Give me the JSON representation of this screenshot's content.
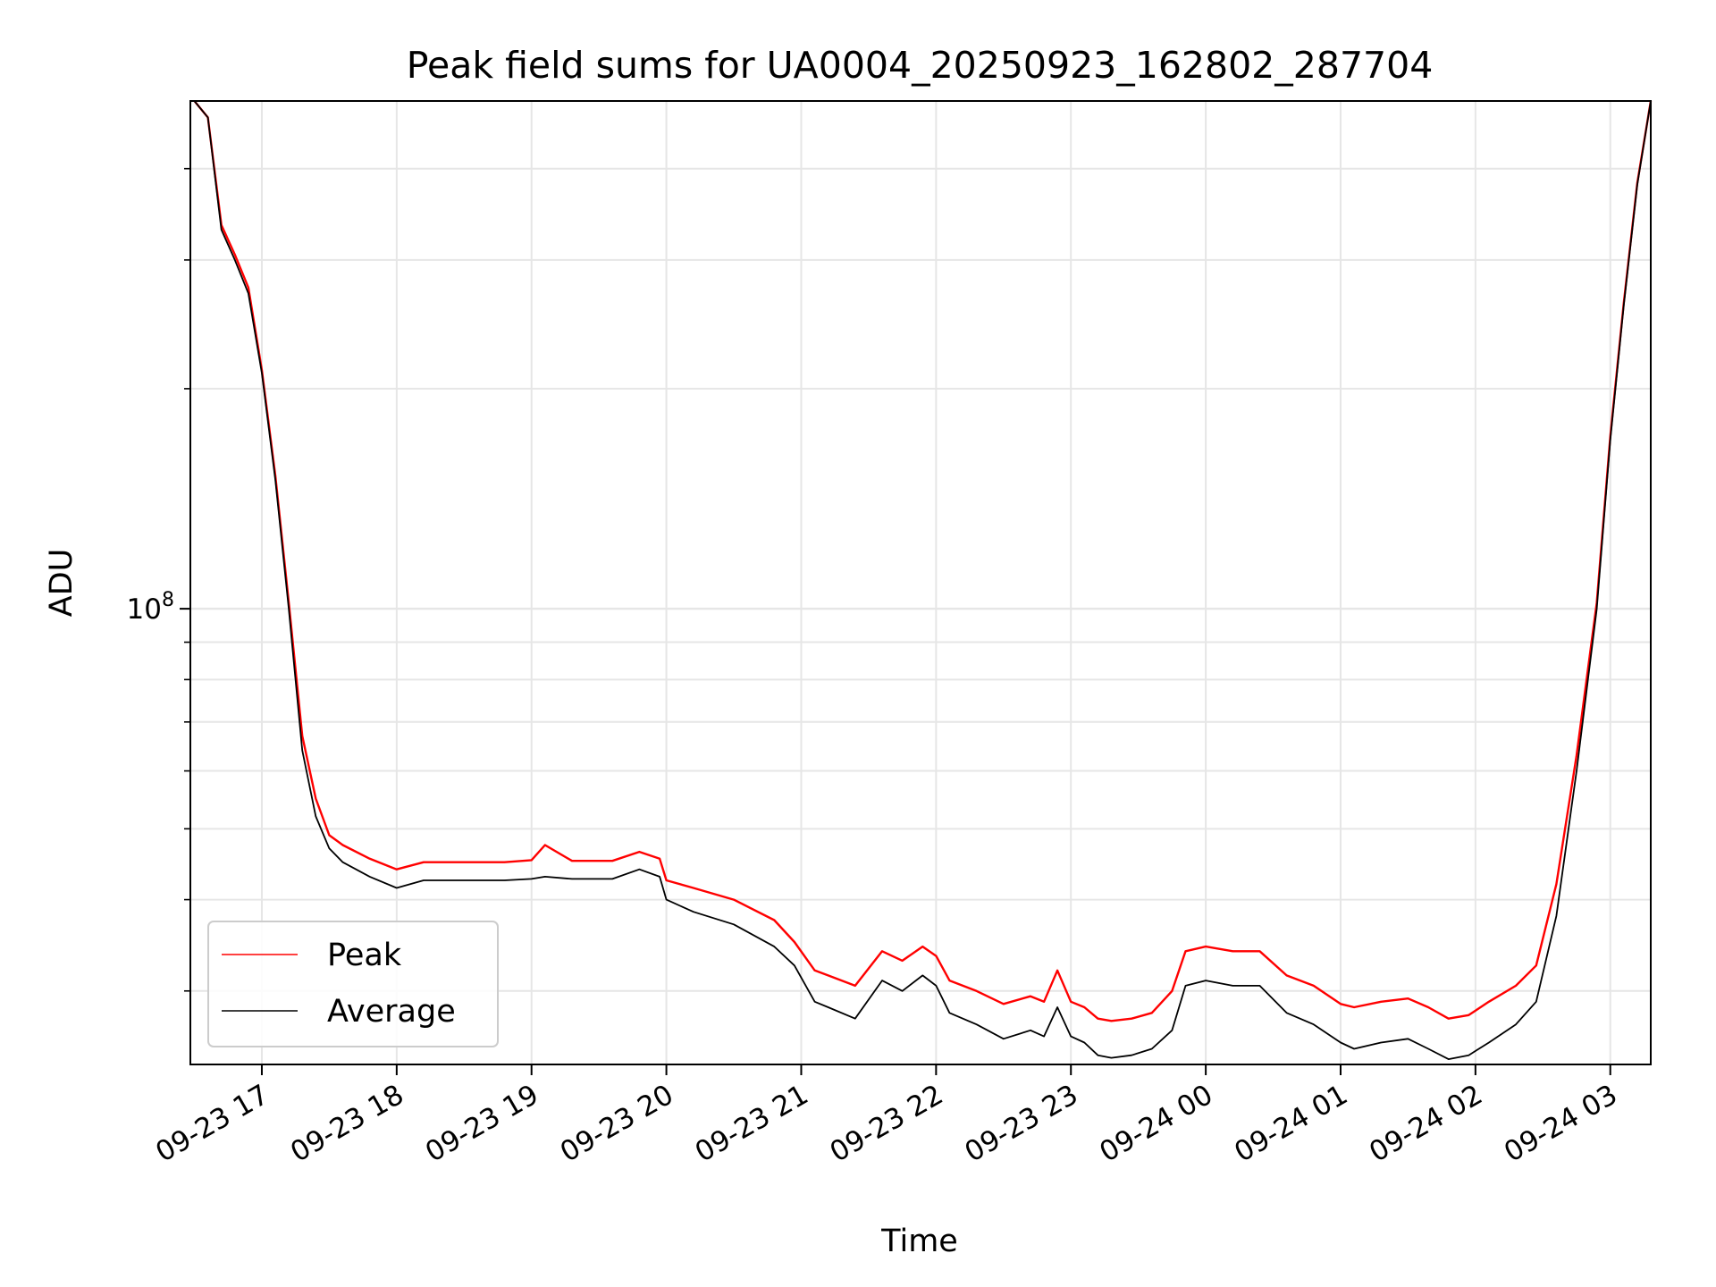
{
  "chart_data": {
    "type": "line",
    "title": "Peak field sums for UA0004_20250923_162802_287704",
    "xlabel": "Time",
    "ylabel": "ADU",
    "yscale": "log",
    "ylim": [
      23800000,
      495000000
    ],
    "xlim_hours": [
      16.47,
      27.3
    ],
    "grid": true,
    "legend_position": "lower-left",
    "x_tick_labels": [
      "09-23 17",
      "09-23 18",
      "09-23 19",
      "09-23 20",
      "09-23 21",
      "09-23 22",
      "09-23 23",
      "09-24 00",
      "09-24 01",
      "09-24 02",
      "09-24 03"
    ],
    "x_tick_hours": [
      17,
      18,
      19,
      20,
      21,
      22,
      23,
      24,
      25,
      26,
      27
    ],
    "y_tick_major": {
      "base": "10",
      "exp": "8",
      "value": 100000000
    },
    "y_tick_minor_values": [
      30000000,
      40000000,
      50000000,
      60000000,
      70000000,
      80000000,
      90000000,
      200000000,
      300000000,
      400000000
    ],
    "series": [
      {
        "name": "Peak",
        "color": "#ff0000"
      },
      {
        "name": "Average",
        "color": "#000000"
      }
    ],
    "x_hours": [
      16.5,
      16.6,
      16.7,
      16.8,
      16.9,
      17.0,
      17.1,
      17.2,
      17.3,
      17.4,
      17.5,
      17.6,
      17.8,
      18.0,
      18.2,
      18.5,
      18.8,
      19.0,
      19.1,
      19.3,
      19.6,
      19.8,
      19.95,
      20.0,
      20.2,
      20.5,
      20.8,
      20.95,
      21.1,
      21.2,
      21.4,
      21.6,
      21.75,
      21.9,
      22.0,
      22.1,
      22.3,
      22.5,
      22.7,
      22.8,
      22.9,
      23.0,
      23.1,
      23.2,
      23.3,
      23.45,
      23.6,
      23.75,
      23.85,
      24.0,
      24.2,
      24.4,
      24.6,
      24.8,
      25.0,
      25.1,
      25.3,
      25.5,
      25.65,
      25.8,
      25.95,
      26.1,
      26.3,
      26.45,
      26.6,
      26.75,
      26.9,
      27.0,
      27.1,
      27.2,
      27.3
    ],
    "average_values": [
      495000000,
      470000000,
      330000000,
      300000000,
      270000000,
      210000000,
      150000000,
      100000000,
      64000000,
      52000000,
      47000000,
      45000000,
      43000000,
      41500000,
      42500000,
      42500000,
      42500000,
      42700000,
      43000000,
      42700000,
      42700000,
      44000000,
      43000000,
      40000000,
      38500000,
      37000000,
      34500000,
      32500000,
      29000000,
      28500000,
      27500000,
      31000000,
      30000000,
      31500000,
      30500000,
      28000000,
      27000000,
      25800000,
      26500000,
      26000000,
      28500000,
      26000000,
      25500000,
      24500000,
      24300000,
      24500000,
      25000000,
      26500000,
      30500000,
      31000000,
      30500000,
      30500000,
      28000000,
      27000000,
      25500000,
      25000000,
      25500000,
      25800000,
      25000000,
      24200000,
      24500000,
      25500000,
      27000000,
      29000000,
      38000000,
      60000000,
      100000000,
      170000000,
      260000000,
      380000000,
      495000000
    ],
    "peak_values": [
      495000000,
      470000000,
      335000000,
      305000000,
      275000000,
      212000000,
      152000000,
      102000000,
      67000000,
      55000000,
      49000000,
      47500000,
      45500000,
      44000000,
      45000000,
      45000000,
      45000000,
      45300000,
      47500000,
      45200000,
      45200000,
      46500000,
      45500000,
      42500000,
      41500000,
      40000000,
      37500000,
      35000000,
      32000000,
      31500000,
      30500000,
      34000000,
      33000000,
      34500000,
      33500000,
      31000000,
      30000000,
      28800000,
      29500000,
      29000000,
      32000000,
      29000000,
      28500000,
      27500000,
      27300000,
      27500000,
      28000000,
      30000000,
      34000000,
      34500000,
      34000000,
      34000000,
      31500000,
      30500000,
      28800000,
      28500000,
      29000000,
      29300000,
      28500000,
      27500000,
      27800000,
      29000000,
      30500000,
      32500000,
      42000000,
      63000000,
      102000000,
      172000000,
      262000000,
      382000000,
      495000000
    ]
  }
}
